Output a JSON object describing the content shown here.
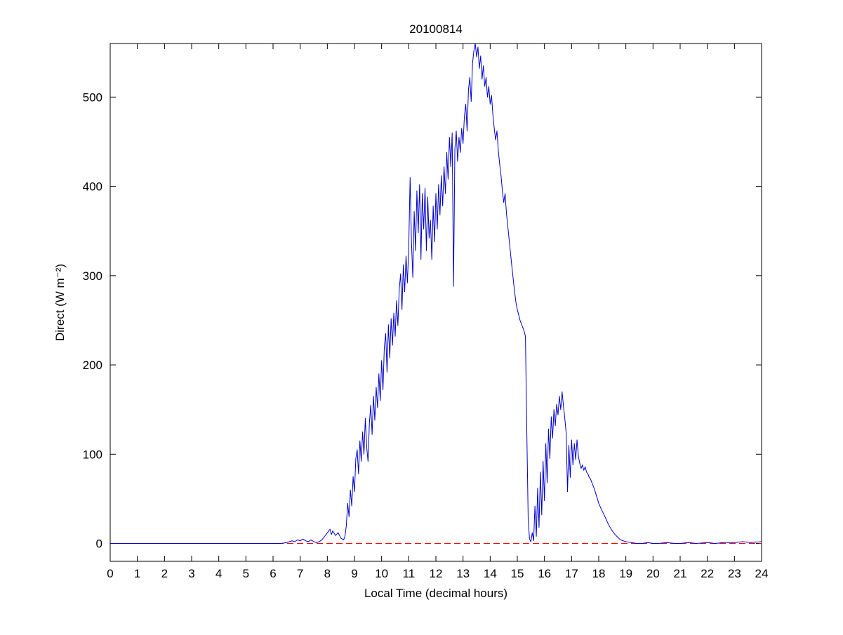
{
  "chart_data": {
    "type": "line",
    "title": "20100814",
    "xlabel": "Local Time (decimal hours)",
    "ylabel": "Direct (W m⁻²)",
    "xlim": [
      0,
      24
    ],
    "ylim": [
      -20,
      560
    ],
    "x_ticks": [
      0,
      1,
      2,
      3,
      4,
      5,
      6,
      7,
      8,
      9,
      10,
      11,
      12,
      13,
      14,
      15,
      16,
      17,
      18,
      19,
      20,
      21,
      22,
      23,
      24
    ],
    "y_ticks": [
      0,
      100,
      200,
      300,
      400,
      500
    ],
    "grid": false,
    "reference_line": {
      "y": 0,
      "color": "#ff0000",
      "style": "dashed"
    },
    "series": [
      {
        "name": "direct",
        "color": "#0000cc",
        "points": [
          [
            0,
            0
          ],
          [
            0.5,
            0
          ],
          [
            1,
            0
          ],
          [
            1.5,
            0
          ],
          [
            2,
            0
          ],
          [
            2.5,
            0
          ],
          [
            3,
            0
          ],
          [
            3.5,
            0
          ],
          [
            4,
            0
          ],
          [
            4.5,
            0
          ],
          [
            5,
            0
          ],
          [
            5.5,
            0
          ],
          [
            6,
            0
          ],
          [
            6.3,
            0
          ],
          [
            6.5,
            1
          ],
          [
            6.6,
            2
          ],
          [
            6.7,
            3
          ],
          [
            6.8,
            2
          ],
          [
            6.9,
            4
          ],
          [
            7.0,
            3
          ],
          [
            7.1,
            5
          ],
          [
            7.2,
            3
          ],
          [
            7.3,
            2
          ],
          [
            7.4,
            4
          ],
          [
            7.5,
            2
          ],
          [
            7.6,
            1
          ],
          [
            7.7,
            2
          ],
          [
            7.8,
            4
          ],
          [
            7.9,
            8
          ],
          [
            8.0,
            12
          ],
          [
            8.1,
            16
          ],
          [
            8.15,
            10
          ],
          [
            8.2,
            14
          ],
          [
            8.3,
            9
          ],
          [
            8.4,
            12
          ],
          [
            8.5,
            6
          ],
          [
            8.6,
            4
          ],
          [
            8.65,
            8
          ],
          [
            8.7,
            20
          ],
          [
            8.75,
            45
          ],
          [
            8.8,
            30
          ],
          [
            8.85,
            60
          ],
          [
            8.9,
            42
          ],
          [
            8.95,
            75
          ],
          [
            9.0,
            58
          ],
          [
            9.05,
            95
          ],
          [
            9.1,
            105
          ],
          [
            9.15,
            78
          ],
          [
            9.2,
            115
          ],
          [
            9.25,
            92
          ],
          [
            9.3,
            125
          ],
          [
            9.35,
            100
          ],
          [
            9.4,
            140
          ],
          [
            9.45,
            108
          ],
          [
            9.5,
            92
          ],
          [
            9.55,
            135
          ],
          [
            9.6,
            155
          ],
          [
            9.65,
            122
          ],
          [
            9.7,
            165
          ],
          [
            9.75,
            138
          ],
          [
            9.8,
            175
          ],
          [
            9.85,
            152
          ],
          [
            9.9,
            190
          ],
          [
            9.95,
            160
          ],
          [
            10.0,
            205
          ],
          [
            10.05,
            172
          ],
          [
            10.1,
            220
          ],
          [
            10.15,
            235
          ],
          [
            10.2,
            192
          ],
          [
            10.25,
            245
          ],
          [
            10.3,
            208
          ],
          [
            10.35,
            252
          ],
          [
            10.4,
            222
          ],
          [
            10.45,
            258
          ],
          [
            10.5,
            232
          ],
          [
            10.55,
            272
          ],
          [
            10.6,
            244
          ],
          [
            10.65,
            285
          ],
          [
            10.7,
            302
          ],
          [
            10.75,
            262
          ],
          [
            10.8,
            312
          ],
          [
            10.85,
            282
          ],
          [
            10.9,
            322
          ],
          [
            10.95,
            292
          ],
          [
            11.0,
            332
          ],
          [
            11.05,
            410
          ],
          [
            11.1,
            338
          ],
          [
            11.15,
            298
          ],
          [
            11.2,
            372
          ],
          [
            11.25,
            328
          ],
          [
            11.3,
            395
          ],
          [
            11.35,
            348
          ],
          [
            11.4,
            402
          ],
          [
            11.45,
            318
          ],
          [
            11.5,
            392
          ],
          [
            11.55,
            352
          ],
          [
            11.6,
            398
          ],
          [
            11.65,
            328
          ],
          [
            11.7,
            388
          ],
          [
            11.75,
            342
          ],
          [
            11.8,
            362
          ],
          [
            11.85,
            318
          ],
          [
            11.9,
            378
          ],
          [
            11.95,
            338
          ],
          [
            12.0,
            392
          ],
          [
            12.05,
            352
          ],
          [
            12.1,
            402
          ],
          [
            12.15,
            368
          ],
          [
            12.2,
            412
          ],
          [
            12.25,
            378
          ],
          [
            12.3,
            422
          ],
          [
            12.35,
            392
          ],
          [
            12.4,
            438
          ],
          [
            12.45,
            408
          ],
          [
            12.5,
            455
          ],
          [
            12.55,
            422
          ],
          [
            12.6,
            460
          ],
          [
            12.65,
            288
          ],
          [
            12.7,
            442
          ],
          [
            12.75,
            462
          ],
          [
            12.8,
            428
          ],
          [
            12.85,
            455
          ],
          [
            12.9,
            438
          ],
          [
            12.95,
            465
          ],
          [
            13.0,
            448
          ],
          [
            13.05,
            478
          ],
          [
            13.1,
            492
          ],
          [
            13.15,
            462
          ],
          [
            13.2,
            508
          ],
          [
            13.25,
            522
          ],
          [
            13.3,
            495
          ],
          [
            13.35,
            538
          ],
          [
            13.4,
            552
          ],
          [
            13.45,
            560
          ],
          [
            13.5,
            545
          ],
          [
            13.55,
            556
          ],
          [
            13.6,
            532
          ],
          [
            13.65,
            546
          ],
          [
            13.7,
            520
          ],
          [
            13.75,
            535
          ],
          [
            13.8,
            512
          ],
          [
            13.85,
            522
          ],
          [
            13.9,
            500
          ],
          [
            13.95,
            512
          ],
          [
            14.0,
            492
          ],
          [
            14.05,
            502
          ],
          [
            14.1,
            480
          ],
          [
            14.15,
            465
          ],
          [
            14.2,
            452
          ],
          [
            14.25,
            462
          ],
          [
            14.3,
            440
          ],
          [
            14.35,
            425
          ],
          [
            14.4,
            412
          ],
          [
            14.45,
            395
          ],
          [
            14.5,
            382
          ],
          [
            14.55,
            392
          ],
          [
            14.6,
            370
          ],
          [
            14.65,
            355
          ],
          [
            14.7,
            340
          ],
          [
            14.75,
            325
          ],
          [
            14.8,
            310
          ],
          [
            14.85,
            296
          ],
          [
            14.9,
            282
          ],
          [
            14.95,
            270
          ],
          [
            15.0,
            262
          ],
          [
            15.05,
            256
          ],
          [
            15.1,
            250
          ],
          [
            15.15,
            246
          ],
          [
            15.2,
            242
          ],
          [
            15.25,
            238
          ],
          [
            15.3,
            232
          ],
          [
            15.35,
            125
          ],
          [
            15.4,
            28
          ],
          [
            15.45,
            5
          ],
          [
            15.5,
            2
          ],
          [
            15.55,
            12
          ],
          [
            15.6,
            3
          ],
          [
            15.65,
            42
          ],
          [
            15.7,
            8
          ],
          [
            15.75,
            62
          ],
          [
            15.8,
            18
          ],
          [
            15.85,
            80
          ],
          [
            15.9,
            32
          ],
          [
            15.95,
            92
          ],
          [
            16.0,
            48
          ],
          [
            16.05,
            112
          ],
          [
            16.1,
            68
          ],
          [
            16.15,
            128
          ],
          [
            16.2,
            95
          ],
          [
            16.25,
            142
          ],
          [
            16.3,
            118
          ],
          [
            16.35,
            150
          ],
          [
            16.4,
            132
          ],
          [
            16.45,
            156
          ],
          [
            16.5,
            144
          ],
          [
            16.55,
            165
          ],
          [
            16.6,
            150
          ],
          [
            16.65,
            170
          ],
          [
            16.7,
            154
          ],
          [
            16.75,
            140
          ],
          [
            16.8,
            124
          ],
          [
            16.85,
            58
          ],
          [
            16.9,
            110
          ],
          [
            16.95,
            74
          ],
          [
            17.0,
            116
          ],
          [
            17.05,
            88
          ],
          [
            17.1,
            112
          ],
          [
            17.15,
            94
          ],
          [
            17.2,
            116
          ],
          [
            17.25,
            98
          ],
          [
            17.3,
            90
          ],
          [
            17.35,
            84
          ],
          [
            17.4,
            88
          ],
          [
            17.45,
            82
          ],
          [
            17.5,
            86
          ],
          [
            17.55,
            80
          ],
          [
            17.6,
            78
          ],
          [
            17.65,
            74
          ],
          [
            17.7,
            72
          ],
          [
            17.75,
            68
          ],
          [
            17.8,
            64
          ],
          [
            17.85,
            60
          ],
          [
            17.9,
            55
          ],
          [
            17.95,
            50
          ],
          [
            18.0,
            45
          ],
          [
            18.1,
            38
          ],
          [
            18.2,
            32
          ],
          [
            18.3,
            25
          ],
          [
            18.4,
            19
          ],
          [
            18.5,
            14
          ],
          [
            18.6,
            10
          ],
          [
            18.7,
            7
          ],
          [
            18.8,
            4
          ],
          [
            18.9,
            3
          ],
          [
            19.0,
            2
          ],
          [
            19.2,
            1
          ],
          [
            19.4,
            0
          ],
          [
            19.6,
            0
          ],
          [
            19.8,
            1
          ],
          [
            20.0,
            0
          ],
          [
            20.2,
            0
          ],
          [
            20.5,
            1
          ],
          [
            20.8,
            0
          ],
          [
            21.0,
            0
          ],
          [
            21.3,
            1
          ],
          [
            21.6,
            0
          ],
          [
            22.0,
            1
          ],
          [
            22.3,
            0
          ],
          [
            22.6,
            1
          ],
          [
            23.0,
            1
          ],
          [
            23.3,
            2
          ],
          [
            23.6,
            1
          ],
          [
            24.0,
            2
          ]
        ]
      }
    ]
  }
}
